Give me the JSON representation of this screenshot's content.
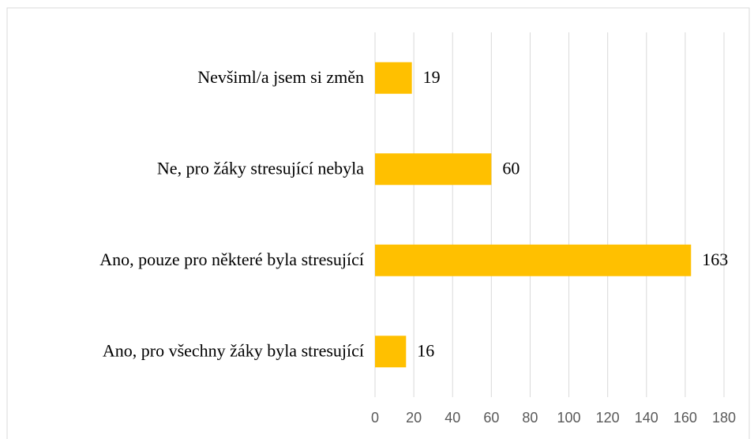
{
  "chart_data": {
    "type": "hbar",
    "categories": [
      "Nevšiml/a jsem si změn",
      "Ne, pro žáky stresující nebyla",
      "Ano, pouze pro některé byla stresující",
      "Ano, pro všechny žáky byla stresující"
    ],
    "values": [
      19,
      60,
      163,
      16
    ],
    "color": "#ffc000",
    "xlim": [
      0,
      180
    ],
    "xticks": [
      0,
      20,
      40,
      60,
      80,
      100,
      120,
      140,
      160,
      180
    ],
    "grid": true
  }
}
